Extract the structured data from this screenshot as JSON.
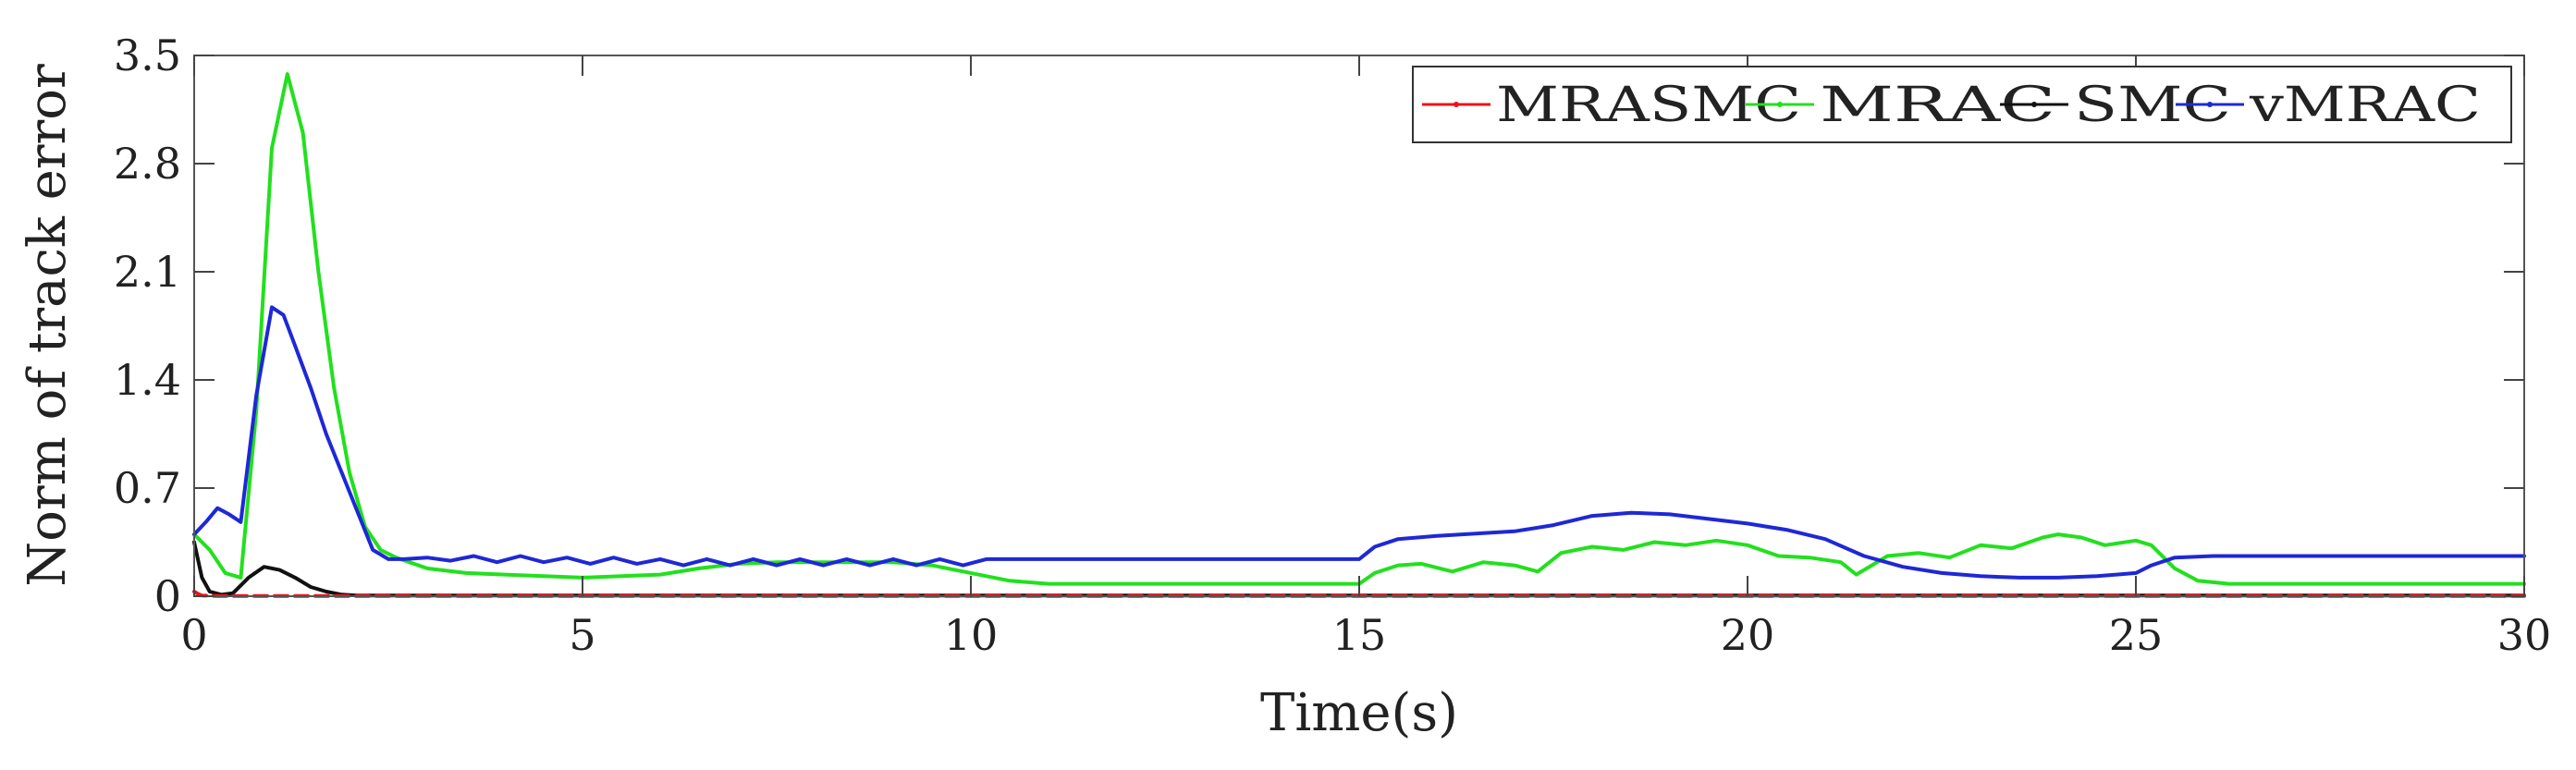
{
  "chart_data": {
    "type": "line",
    "title": "",
    "xlabel": "Time(s)",
    "ylabel": "Norm of track error",
    "xlim": [
      0,
      30
    ],
    "ylim": [
      0,
      3.5
    ],
    "xticks": [
      0,
      5,
      10,
      15,
      20,
      25,
      30
    ],
    "xtick_labels": [
      "0",
      "5",
      "10",
      "15",
      "20",
      "25",
      "30"
    ],
    "yticks": [
      0,
      0.7,
      1.4,
      2.1,
      2.8,
      3.5
    ],
    "ytick_labels": [
      "0",
      "0.7",
      "1.4",
      "2.1",
      "2.8",
      "3.5"
    ],
    "grid": false,
    "legend_position": "top-right",
    "series": [
      {
        "name": "MRASMC",
        "color": "#e8141c",
        "dashed": true,
        "x": [
          0,
          0.05,
          0.1,
          0.3,
          2,
          5,
          10,
          15,
          20,
          25,
          30
        ],
        "y": [
          0.03,
          0.015,
          0.005,
          0.002,
          0.002,
          0.002,
          0.002,
          0.002,
          0.002,
          0.002,
          0.002
        ]
      },
      {
        "name": "MRAC",
        "color": "#22e01e",
        "x": [
          0,
          0.2,
          0.4,
          0.6,
          0.8,
          1.0,
          1.2,
          1.4,
          1.6,
          1.8,
          2.0,
          2.2,
          2.4,
          2.6,
          3.0,
          3.5,
          4.0,
          4.5,
          5.0,
          5.5,
          6.0,
          6.5,
          7.0,
          7.5,
          8.0,
          8.5,
          9.0,
          9.5,
          10.0,
          10.5,
          11.0,
          12.0,
          13.0,
          14.0,
          15.0,
          15.2,
          15.5,
          15.8,
          16.2,
          16.6,
          17.0,
          17.3,
          17.6,
          18.0,
          18.4,
          18.8,
          19.2,
          19.6,
          20.0,
          20.4,
          20.8,
          21.2,
          21.4,
          21.6,
          21.8,
          22.2,
          22.6,
          23.0,
          23.4,
          23.8,
          24.0,
          24.3,
          24.6,
          25.0,
          25.2,
          25.5,
          25.8,
          26.2,
          27,
          28,
          29,
          30
        ],
        "y": [
          0.4,
          0.3,
          0.15,
          0.12,
          1.2,
          2.9,
          3.38,
          3.0,
          2.1,
          1.35,
          0.8,
          0.45,
          0.3,
          0.25,
          0.18,
          0.15,
          0.14,
          0.13,
          0.12,
          0.13,
          0.14,
          0.18,
          0.21,
          0.22,
          0.22,
          0.22,
          0.22,
          0.2,
          0.15,
          0.1,
          0.08,
          0.08,
          0.08,
          0.08,
          0.08,
          0.15,
          0.2,
          0.21,
          0.16,
          0.22,
          0.2,
          0.16,
          0.28,
          0.32,
          0.3,
          0.35,
          0.33,
          0.36,
          0.33,
          0.26,
          0.25,
          0.22,
          0.14,
          0.2,
          0.26,
          0.28,
          0.25,
          0.33,
          0.31,
          0.38,
          0.4,
          0.38,
          0.33,
          0.36,
          0.33,
          0.18,
          0.1,
          0.08,
          0.08,
          0.08,
          0.08,
          0.08
        ]
      },
      {
        "name": "SMC",
        "color": "#111111",
        "x": [
          0,
          0.1,
          0.2,
          0.35,
          0.5,
          0.7,
          0.9,
          1.1,
          1.3,
          1.5,
          1.7,
          1.9,
          2.1,
          2.5,
          3,
          5,
          10,
          15,
          20,
          25,
          30
        ],
        "y": [
          0.35,
          0.12,
          0.03,
          0.01,
          0.02,
          0.12,
          0.19,
          0.17,
          0.12,
          0.06,
          0.03,
          0.01,
          0.005,
          0.005,
          0.005,
          0.005,
          0.005,
          0.005,
          0.005,
          0.005,
          0.005
        ]
      },
      {
        "name": "vMRAC",
        "color": "#1e28d6",
        "x": [
          0,
          0.15,
          0.3,
          0.45,
          0.6,
          0.8,
          1.0,
          1.15,
          1.3,
          1.5,
          1.7,
          1.9,
          2.1,
          2.3,
          2.5,
          2.7,
          3.0,
          3.3,
          3.6,
          3.9,
          4.2,
          4.5,
          4.8,
          5.1,
          5.4,
          5.7,
          6.0,
          6.3,
          6.6,
          6.9,
          7.2,
          7.5,
          7.8,
          8.1,
          8.4,
          8.7,
          9.0,
          9.3,
          9.6,
          9.9,
          10.2,
          11,
          12,
          13,
          14,
          15.0,
          15.2,
          15.5,
          16,
          17,
          17.5,
          18,
          18.5,
          19,
          19.5,
          20,
          20.5,
          21,
          21.5,
          22,
          22.5,
          23,
          23.5,
          24,
          24.5,
          25,
          25.2,
          25.5,
          26,
          27,
          28,
          29,
          30
        ],
        "y": [
          0.4,
          0.48,
          0.57,
          0.53,
          0.48,
          1.3,
          1.87,
          1.82,
          1.62,
          1.35,
          1.05,
          0.8,
          0.55,
          0.3,
          0.24,
          0.24,
          0.25,
          0.23,
          0.26,
          0.22,
          0.26,
          0.22,
          0.25,
          0.21,
          0.25,
          0.21,
          0.24,
          0.2,
          0.24,
          0.2,
          0.24,
          0.2,
          0.24,
          0.2,
          0.24,
          0.2,
          0.24,
          0.2,
          0.24,
          0.2,
          0.24,
          0.24,
          0.24,
          0.24,
          0.24,
          0.24,
          0.32,
          0.37,
          0.39,
          0.42,
          0.46,
          0.52,
          0.54,
          0.53,
          0.5,
          0.47,
          0.43,
          0.37,
          0.26,
          0.19,
          0.15,
          0.13,
          0.12,
          0.12,
          0.13,
          0.15,
          0.2,
          0.25,
          0.26,
          0.26,
          0.26,
          0.26,
          0.26
        ]
      }
    ]
  }
}
